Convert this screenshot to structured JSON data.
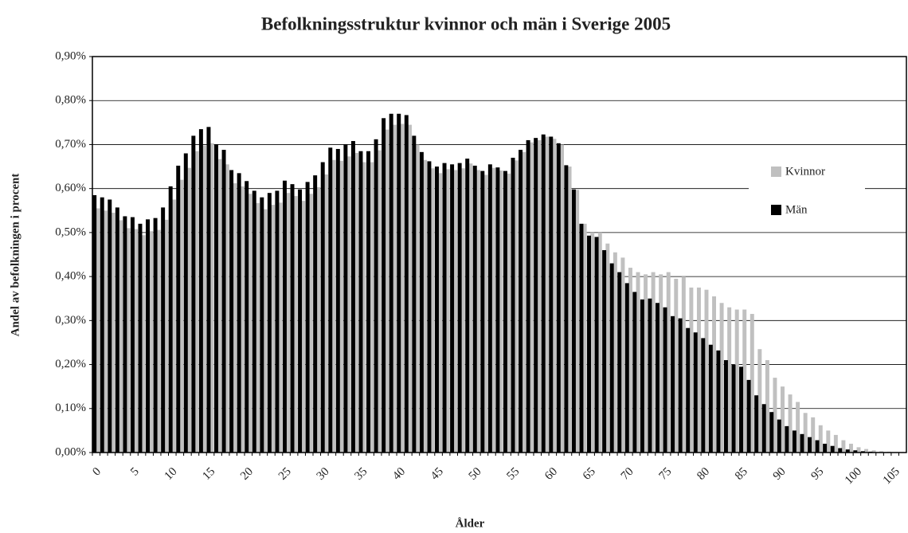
{
  "chart_data": {
    "type": "bar",
    "title": "Befolkningsstruktur kvinnor och män i Sverige 2005",
    "x_label": "Ålder",
    "y_label": "Andel av befolkningen i procent",
    "categories": [
      "0",
      null,
      null,
      null,
      null,
      "5",
      null,
      null,
      null,
      null,
      "10",
      null,
      null,
      null,
      null,
      "15",
      null,
      null,
      null,
      null,
      "20",
      null,
      null,
      null,
      null,
      "25",
      null,
      null,
      null,
      null,
      "30",
      null,
      null,
      null,
      null,
      "35",
      null,
      null,
      null,
      null,
      "40",
      null,
      null,
      null,
      null,
      "45",
      null,
      null,
      null,
      null,
      "50",
      null,
      null,
      null,
      null,
      "55",
      null,
      null,
      null,
      null,
      "60",
      null,
      null,
      null,
      null,
      "65",
      null,
      null,
      null,
      null,
      "70",
      null,
      null,
      null,
      null,
      "75",
      null,
      null,
      null,
      null,
      "80",
      null,
      null,
      null,
      null,
      "85",
      null,
      null,
      null,
      null,
      "90",
      null,
      null,
      null,
      null,
      "95",
      null,
      null,
      null,
      null,
      "100",
      null,
      null,
      null,
      null,
      "105",
      null
    ],
    "series": [
      {
        "name": "Kvinnor",
        "color": "#c0c0c0",
        "values": [
          0.555,
          0.55,
          0.545,
          0.528,
          0.51,
          0.508,
          0.494,
          0.503,
          0.506,
          0.529,
          0.575,
          0.62,
          0.647,
          0.685,
          0.698,
          0.703,
          0.667,
          0.655,
          0.612,
          0.605,
          0.588,
          0.567,
          0.553,
          0.563,
          0.568,
          0.59,
          0.583,
          0.572,
          0.588,
          0.603,
          0.632,
          0.665,
          0.663,
          0.673,
          0.681,
          0.66,
          0.66,
          0.687,
          0.734,
          0.745,
          0.747,
          0.745,
          0.7,
          0.665,
          0.646,
          0.635,
          0.644,
          0.642,
          0.646,
          0.657,
          0.642,
          0.631,
          0.647,
          0.641,
          0.634,
          0.664,
          0.683,
          0.705,
          0.71,
          0.718,
          0.713,
          0.7,
          0.65,
          0.597,
          0.52,
          0.5,
          0.5,
          0.475,
          0.455,
          0.443,
          0.42,
          0.41,
          0.405,
          0.41,
          0.405,
          0.41,
          0.395,
          0.4,
          0.375,
          0.375,
          0.37,
          0.355,
          0.34,
          0.33,
          0.325,
          0.325,
          0.315,
          0.235,
          0.21,
          0.17,
          0.15,
          0.132,
          0.115,
          0.09,
          0.08,
          0.062,
          0.05,
          0.04,
          0.028,
          0.02,
          0.012,
          0.008,
          0.005,
          0.003,
          0.002,
          0.001,
          0.001
        ]
      },
      {
        "name": "Män",
        "color": "#000000",
        "values": [
          0.585,
          0.58,
          0.575,
          0.557,
          0.537,
          0.535,
          0.52,
          0.53,
          0.533,
          0.557,
          0.605,
          0.652,
          0.68,
          0.72,
          0.735,
          0.74,
          0.7,
          0.688,
          0.642,
          0.635,
          0.617,
          0.595,
          0.58,
          0.59,
          0.595,
          0.618,
          0.61,
          0.598,
          0.615,
          0.63,
          0.66,
          0.693,
          0.69,
          0.7,
          0.708,
          0.685,
          0.685,
          0.712,
          0.76,
          0.77,
          0.77,
          0.767,
          0.72,
          0.683,
          0.662,
          0.65,
          0.658,
          0.655,
          0.658,
          0.668,
          0.652,
          0.64,
          0.655,
          0.648,
          0.64,
          0.67,
          0.688,
          0.71,
          0.715,
          0.723,
          0.718,
          0.703,
          0.653,
          0.598,
          0.52,
          0.493,
          0.49,
          0.46,
          0.43,
          0.41,
          0.385,
          0.365,
          0.348,
          0.35,
          0.34,
          0.33,
          0.31,
          0.305,
          0.283,
          0.273,
          0.26,
          0.245,
          0.232,
          0.21,
          0.2,
          0.195,
          0.165,
          0.13,
          0.11,
          0.092,
          0.075,
          0.06,
          0.05,
          0.042,
          0.035,
          0.028,
          0.02,
          0.015,
          0.01,
          0.007,
          0.005,
          0.003,
          0.002,
          0.001,
          0.001,
          0,
          0
        ]
      }
    ],
    "ylim": [
      0,
      0.9
    ],
    "yticks": [
      {
        "value": 0,
        "label": "0,00%"
      },
      {
        "value": 0.1,
        "label": "0,10%"
      },
      {
        "value": 0.2,
        "label": "0,20%"
      },
      {
        "value": 0.3,
        "label": "0,30%"
      },
      {
        "value": 0.4,
        "label": "0,40%"
      },
      {
        "value": 0.5,
        "label": "0,50%"
      },
      {
        "value": 0.6,
        "label": "0,60%"
      },
      {
        "value": 0.7,
        "label": "0,70%"
      },
      {
        "value": 0.8,
        "label": "0,80%"
      },
      {
        "value": 0.9,
        "label": "0,90%"
      }
    ],
    "grid": true
  }
}
